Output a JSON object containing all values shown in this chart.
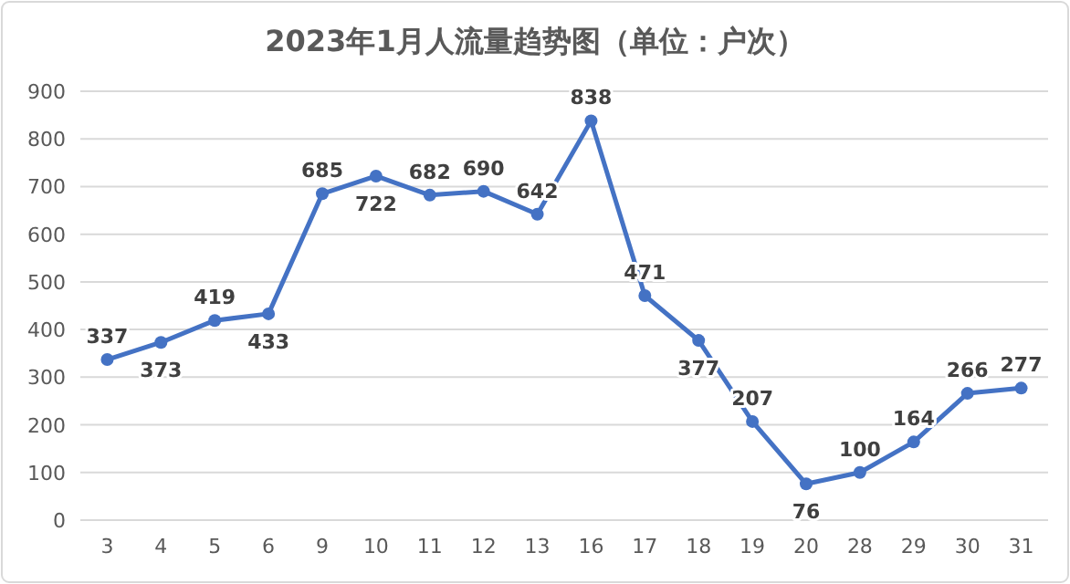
{
  "chart_data": {
    "type": "line",
    "title": "2023年1月人流量趋势图（单位：户次）",
    "categories": [
      "3",
      "4",
      "5",
      "6",
      "9",
      "10",
      "11",
      "12",
      "13",
      "16",
      "17",
      "18",
      "19",
      "20",
      "28",
      "29",
      "30",
      "31"
    ],
    "series": [
      {
        "color": "#4472c4",
        "values": [
          337,
          373,
          419,
          433,
          685,
          722,
          682,
          690,
          642,
          838,
          471,
          377,
          207,
          76,
          100,
          164,
          266,
          277
        ]
      }
    ],
    "ylim": [
      0,
      900
    ],
    "yticks": [
      0,
      100,
      200,
      300,
      400,
      500,
      600,
      700,
      800,
      900
    ],
    "grid": "y",
    "marker": "circle",
    "line_style": "solid",
    "data_labels": true
  }
}
